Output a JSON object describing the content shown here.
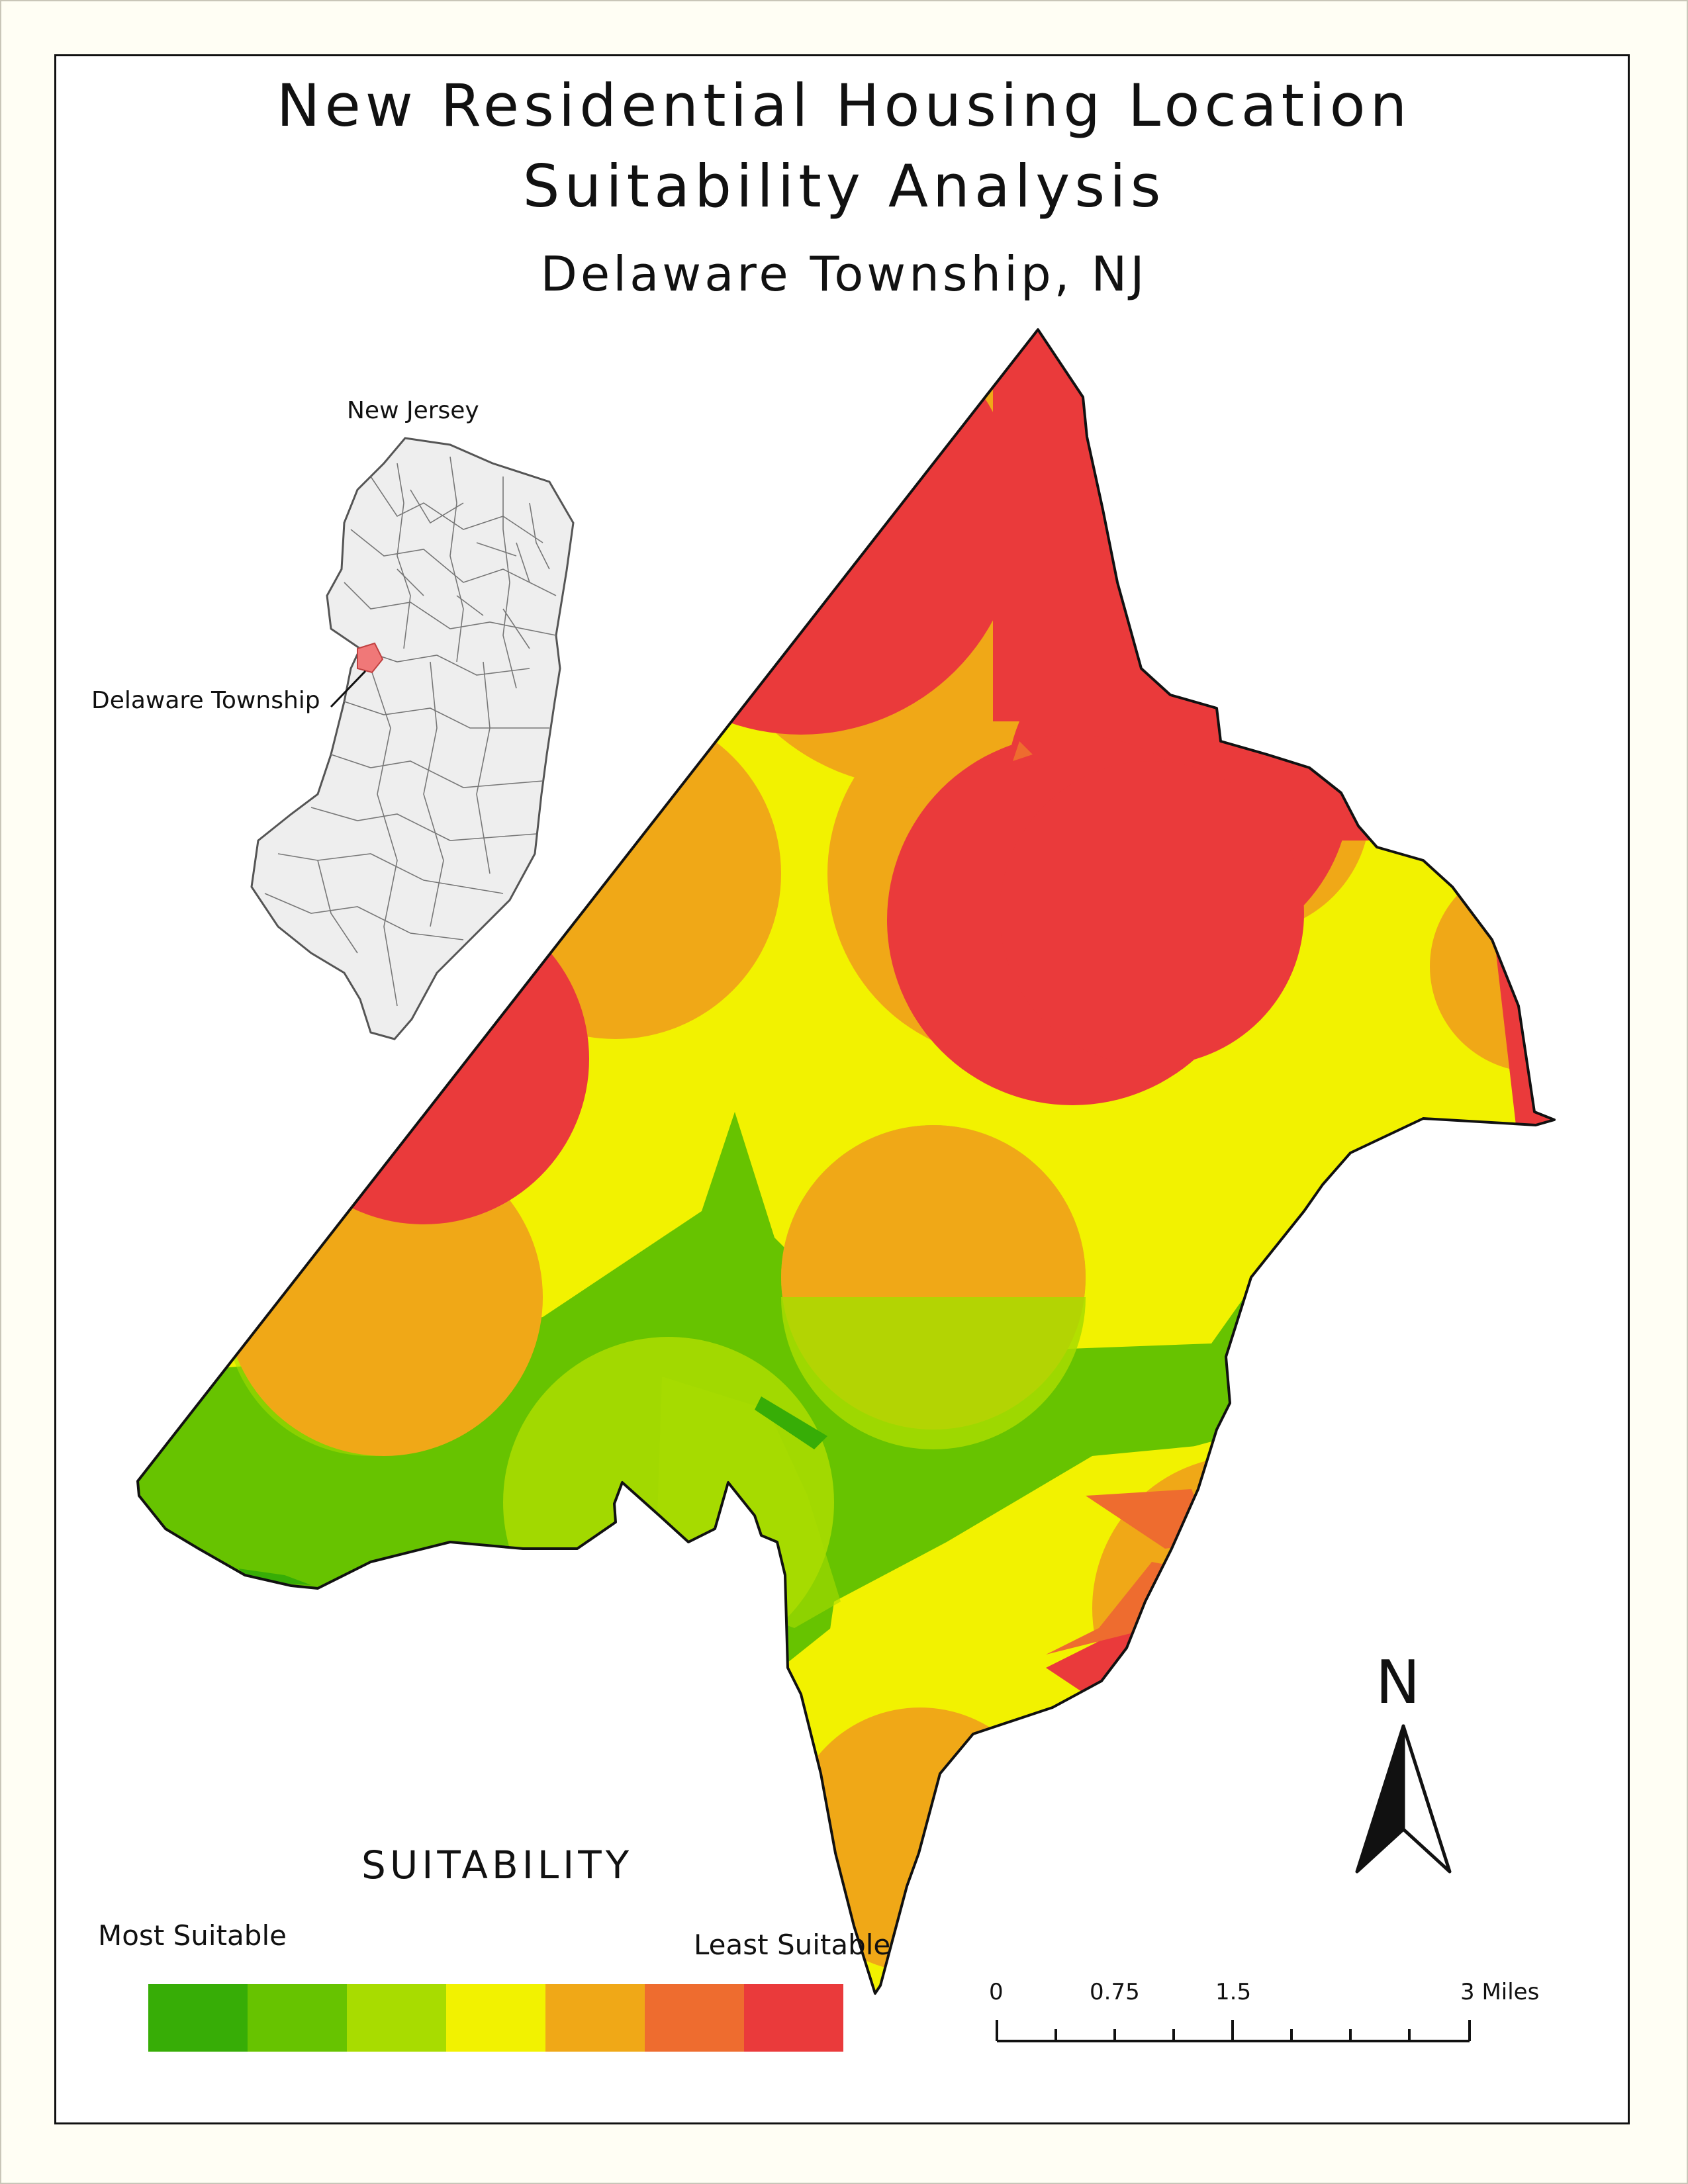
{
  "title": {
    "line1": "New Residential Housing Location",
    "line2": "Suitability Analysis",
    "subtitle": "Delaware Township, NJ"
  },
  "inset": {
    "title": "New Jersey",
    "callout": "Delaware Township"
  },
  "legend": {
    "title": "SUITABILITY",
    "left_label": "Most Suitable",
    "right_label": "Least Suitable",
    "classes": [
      {
        "color": "#37ad06"
      },
      {
        "color": "#67c300"
      },
      {
        "color": "#a8dc00"
      },
      {
        "color": "#f2f200"
      },
      {
        "color": "#f0a817"
      },
      {
        "color": "#ee6c2f"
      },
      {
        "color": "#ea3a3b"
      }
    ]
  },
  "scale_bar": {
    "labels": [
      "0",
      "0.75",
      "1.5",
      "3 Miles"
    ]
  },
  "north_arrow": {
    "letter": "N",
    "icon": "north-arrow-icon"
  },
  "colors": {
    "least": "#ea3a3b",
    "orange": "#f0a817",
    "dark_orange": "#ee6c2f",
    "yellow": "#f2f200",
    "light_green": "#a8dc00",
    "green": "#67c300",
    "most": "#37ad06",
    "inset_highlight": "#f07878",
    "inset_fill": "#eeeeee"
  }
}
